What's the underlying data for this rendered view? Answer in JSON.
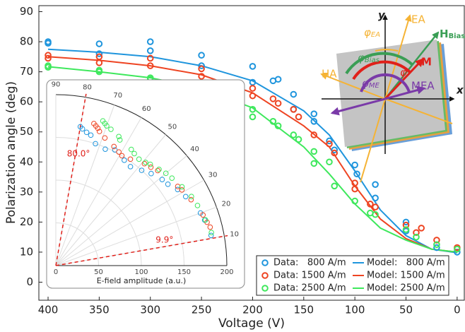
{
  "chart_data": [
    {
      "type": "line",
      "xlabel": "Voltage (V)",
      "ylabel": "Polarization angle (deg)",
      "xlim": [
        409,
        -7
      ],
      "ylim": [
        -6,
        92
      ],
      "xticks": [
        400,
        350,
        300,
        250,
        200,
        150,
        100,
        50,
        0
      ],
      "yticks": [
        0,
        10,
        20,
        30,
        40,
        50,
        60,
        70,
        80,
        90
      ],
      "legend": "lower right",
      "series": [
        {
          "name": "Data:   800 A/m",
          "mode": "markers",
          "color": "#1f95dd",
          "x": [
            400,
            400,
            350,
            350,
            300,
            300,
            250,
            250,
            200,
            200,
            180,
            175,
            160,
            160,
            140,
            140,
            125,
            120,
            100,
            98,
            80,
            80,
            50,
            50,
            20,
            0
          ],
          "values": [
            80,
            79.5,
            79.3,
            76,
            80,
            77,
            75.5,
            72,
            71.8,
            66.5,
            67,
            67.5,
            62.5,
            57.5,
            56,
            53.5,
            47,
            44,
            39,
            36,
            32.5,
            28,
            20,
            17,
            11.5,
            10
          ]
        },
        {
          "name": "Data: 1500 A/m",
          "mode": "markers",
          "color": "#ee4422",
          "x": [
            400,
            400,
            350,
            350,
            300,
            300,
            250,
            250,
            200,
            200,
            180,
            175,
            160,
            155,
            140,
            125,
            120,
            100,
            100,
            85,
            80,
            50,
            40,
            35,
            20,
            0
          ],
          "values": [
            75.5,
            74.5,
            75,
            73,
            74.5,
            72,
            71,
            68.5,
            64.5,
            62,
            61,
            59.5,
            57.5,
            55,
            49,
            46,
            43,
            33,
            31,
            26,
            25,
            19,
            16.5,
            18,
            14,
            11.5
          ]
        },
        {
          "name": "Data: 2500 A/m",
          "mode": "markers",
          "color": "#3ee85c",
          "x": [
            400,
            400,
            350,
            350,
            300,
            300,
            250,
            250,
            200,
            200,
            180,
            175,
            160,
            155,
            140,
            140,
            125,
            120,
            100,
            85,
            80,
            50,
            40,
            20,
            0
          ],
          "values": [
            72,
            71.5,
            70.5,
            70,
            68,
            67.5,
            64,
            63,
            57.5,
            55,
            53.5,
            52,
            49,
            47.5,
            43.5,
            39.5,
            40,
            32,
            27,
            23,
            22.5,
            17.5,
            15,
            12.5,
            11
          ]
        },
        {
          "name": "Model:   800 A/m",
          "mode": "lines",
          "color": "#1f95dd",
          "x": [
            400,
            350,
            300,
            250,
            200,
            150,
            125,
            100,
            75,
            50,
            25,
            0
          ],
          "values": [
            77.5,
            76.5,
            75,
            72,
            67,
            57,
            49,
            37,
            24,
            15.5,
            11,
            9.8
          ]
        },
        {
          "name": "Model: 1500 A/m",
          "mode": "lines",
          "color": "#ee4422",
          "x": [
            400,
            350,
            300,
            250,
            200,
            150,
            125,
            100,
            75,
            50,
            25,
            0
          ],
          "values": [
            75,
            73.8,
            72,
            69,
            63,
            52,
            45,
            32,
            21,
            14.5,
            11,
            10
          ]
        },
        {
          "name": "Model: 2500 A/m",
          "mode": "lines",
          "color": "#3ee85c",
          "x": [
            400,
            350,
            300,
            250,
            200,
            150,
            125,
            100,
            75,
            50,
            25,
            0
          ],
          "values": [
            71.7,
            70,
            68,
            64.5,
            58,
            45,
            36,
            26,
            18,
            14,
            11,
            10
          ]
        }
      ]
    },
    {
      "type": "polar",
      "xlabel": "E-field amplitude (a.u.)",
      "rlim": [
        0,
        200
      ],
      "rticks": [
        0,
        50,
        100,
        150,
        200
      ],
      "thetalim": [
        0,
        90
      ],
      "thetaticks": [
        10,
        20,
        30,
        40,
        50,
        60,
        70,
        80,
        90
      ],
      "series": [
        {
          "color": "#1f95dd",
          "theta": [
            80,
            79,
            77,
            75,
            72,
            67,
            63,
            57,
            53,
            48,
            44,
            39,
            36,
            32,
            28,
            20,
            17,
            11
          ],
          "r": [
            165,
            163,
            160,
            158,
            150,
            148,
            152,
            147,
            145,
            150,
            155,
            160,
            162,
            168,
            172,
            180,
            182,
            185
          ]
        },
        {
          "color": "#ee4422",
          "theta": [
            75,
            74,
            73,
            72,
            69,
            64,
            61,
            59,
            55,
            49,
            46,
            43,
            33,
            31,
            26,
            19,
            16,
            14
          ],
          "r": [
            172,
            170,
            168,
            165,
            160,
            155,
            152,
            150,
            152,
            158,
            160,
            163,
            170,
            172,
            176,
            182,
            184,
            186
          ]
        },
        {
          "color": "#3ee85c",
          "theta": [
            72,
            71,
            70,
            68,
            64,
            63,
            57,
            55,
            52,
            49,
            47,
            43,
            40,
            37,
            32,
            27,
            23,
            17,
            12
          ],
          "r": [
            178,
            176,
            174,
            172,
            168,
            165,
            162,
            160,
            158,
            160,
            162,
            165,
            168,
            170,
            174,
            178,
            180,
            183,
            186
          ]
        }
      ],
      "annotations": [
        {
          "text": "80.0°",
          "angle": 80
        },
        {
          "text": "9.9°",
          "angle": 9.9
        }
      ]
    }
  ],
  "diagram": {
    "y": "y",
    "x": "x",
    "ea": "EA",
    "ha": "HA",
    "mea": "MEA",
    "m": "M",
    "h_bias": {
      "main": "H",
      "sub": "Bias"
    },
    "phi_ea": {
      "main": "φ",
      "sub": "EA"
    },
    "phi_bias": {
      "main": "φ",
      "sub": "Bias"
    },
    "phi": "φ",
    "phi_me": {
      "main": "φ",
      "sub": "ME"
    }
  }
}
